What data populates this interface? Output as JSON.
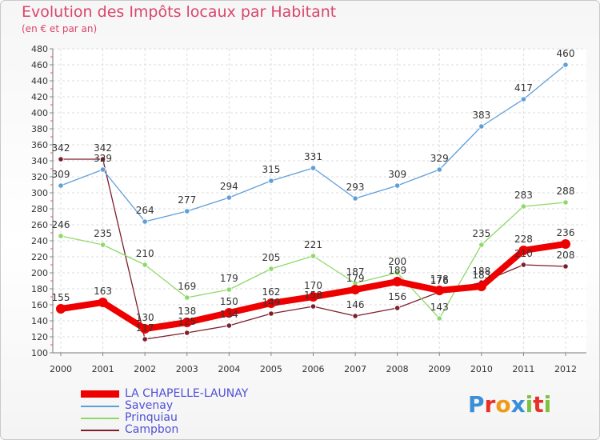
{
  "header": {
    "title": "Evolution des Impôts locaux par Habitant",
    "subtitle": "(en € et par an)"
  },
  "logo": {
    "letters": [
      "P",
      "r",
      "o",
      "x",
      "i",
      "t",
      "i"
    ],
    "colors": [
      "#3a8fd8",
      "#e8302a",
      "#f09a1a",
      "#3a8fd8",
      "#7cc242",
      "#e8302a",
      "#7cc242"
    ]
  },
  "chart_data": {
    "type": "line",
    "x": [
      "2000",
      "2001",
      "2002",
      "2003",
      "2004",
      "2005",
      "2006",
      "2007",
      "2008",
      "2009",
      "2010",
      "2011",
      "2012"
    ],
    "ylim": [
      100,
      480
    ],
    "yticks": [
      "100",
      "120",
      "140",
      "160",
      "180",
      "200",
      "220",
      "240",
      "260",
      "280",
      "300",
      "320",
      "340",
      "360",
      "380",
      "400",
      "420",
      "440",
      "460",
      "480"
    ],
    "grid": true,
    "legend_position": "bottom-left",
    "series": [
      {
        "name": "Campbon",
        "color": "#7a1f2b",
        "values": [
          342,
          342,
          117,
          125,
          134,
          149,
          158,
          146,
          156,
          176,
          188,
          210,
          208
        ],
        "labels": [
          "342",
          "342",
          "117",
          "125",
          "134",
          "149",
          "158",
          "146",
          "156",
          "176",
          "188",
          "210",
          "208"
        ]
      },
      {
        "name": "Prinquiau",
        "color": "#8fd96a",
        "values": [
          246,
          235,
          210,
          169,
          179,
          205,
          221,
          187,
          200,
          143,
          235,
          283,
          288
        ],
        "labels": [
          "246",
          "235",
          "210",
          "169",
          "179",
          "205",
          "221",
          "187",
          "200",
          "143",
          "235",
          "283",
          "288"
        ]
      },
      {
        "name": "Savenay",
        "color": "#5f9fd8",
        "values": [
          309,
          329,
          264,
          277,
          294,
          315,
          331,
          293,
          309,
          329,
          383,
          417,
          460
        ],
        "labels": [
          "309",
          "329",
          "264",
          "277",
          "294",
          "315",
          "331",
          "293",
          "309",
          "329",
          "383",
          "417",
          "460"
        ]
      },
      {
        "name": "LA CHAPELLE-LAUNAY",
        "color": "#ee0000",
        "values": [
          155,
          163,
          130,
          138,
          150,
          162,
          170,
          179,
          189,
          178,
          183,
          228,
          236
        ],
        "labels": [
          "155",
          "163",
          "130",
          "138",
          "150",
          "162",
          "170",
          "179",
          "189",
          "178",
          "183",
          "228",
          "236"
        ]
      }
    ]
  },
  "legend": [
    {
      "name": "LA CHAPELLE-LAUNAY",
      "color": "#ee0000",
      "thickness": "thick"
    },
    {
      "name": "Savenay",
      "color": "#5f9fd8",
      "thickness": "thin"
    },
    {
      "name": "Prinquiau",
      "color": "#8fd96a",
      "thickness": "thin"
    },
    {
      "name": "Campbon",
      "color": "#7a1f2b",
      "thickness": "thin"
    }
  ]
}
